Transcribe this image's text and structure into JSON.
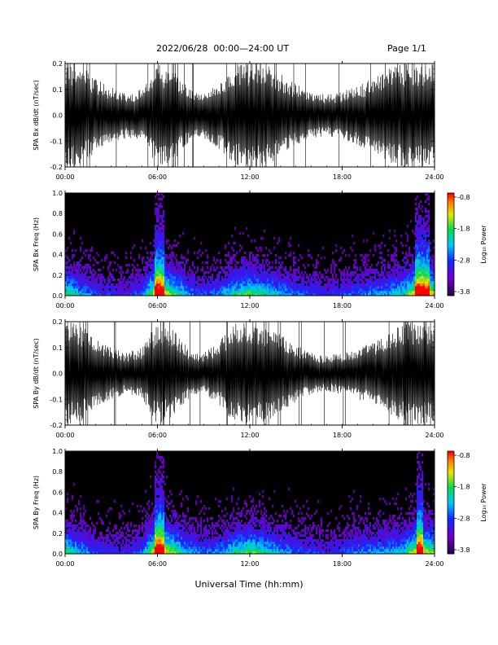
{
  "header": {
    "title": "2022/06/28  00:00—24:00 UT",
    "page": "Page 1/1"
  },
  "xlabel": "Universal Time (hh:mm)",
  "colors": {
    "trace": "#000000",
    "spectrogram_bg": "#000000"
  },
  "chart_data": [
    {
      "type": "line",
      "ylabel": "SPA Bx dB/dt (nT/sec)",
      "x_ticks": [
        "00:00",
        "06:00",
        "12:00",
        "18:00",
        "24:00"
      ],
      "y_ticks": [
        "0.2",
        "0.1",
        "0.0",
        "-0.1",
        "-0.2"
      ],
      "xlim": [
        0,
        24
      ],
      "ylim": [
        -0.2,
        0.2
      ],
      "envelope": {
        "hours": [
          0,
          1,
          2,
          3,
          4,
          5,
          6,
          7,
          8,
          9,
          10,
          11,
          12,
          13,
          14,
          15,
          16,
          17,
          18,
          19,
          20,
          21,
          22,
          23,
          24
        ],
        "amplitude": [
          0.2,
          0.2,
          0.14,
          0.11,
          0.09,
          0.1,
          0.2,
          0.18,
          0.11,
          0.09,
          0.13,
          0.2,
          0.2,
          0.2,
          0.16,
          0.12,
          0.09,
          0.08,
          0.09,
          0.12,
          0.14,
          0.18,
          0.2,
          0.2,
          0.2
        ]
      }
    },
    {
      "type": "heatmap",
      "ylabel": "SPA Bx Freq (Hz)",
      "x_ticks": [
        "00:00",
        "06:00",
        "12:00",
        "18:00",
        "24:00"
      ],
      "y_ticks": [
        "1.0",
        "0.8",
        "0.6",
        "0.4",
        "0.2",
        "0.0"
      ],
      "xlim": [
        0,
        24
      ],
      "ylim": [
        0,
        1.0
      ],
      "colorbar": {
        "label": "Log₁₀ Power",
        "ticks": [
          "-0.8",
          "-1.8",
          "-2.8",
          "-3.8"
        ],
        "range": [
          -3.8,
          -0.8
        ]
      },
      "activity": {
        "hours": [
          0,
          1,
          2,
          3,
          4,
          5,
          6,
          7,
          8,
          9,
          10,
          11,
          12,
          13,
          14,
          15,
          16,
          17,
          18,
          19,
          20,
          21,
          22,
          23,
          24
        ],
        "level": [
          0.7,
          0.5,
          0.35,
          0.3,
          0.3,
          0.4,
          0.95,
          0.7,
          0.45,
          0.35,
          0.45,
          0.6,
          0.7,
          0.6,
          0.5,
          0.4,
          0.35,
          0.3,
          0.35,
          0.4,
          0.45,
          0.5,
          0.6,
          0.95,
          0.8
        ]
      }
    },
    {
      "type": "line",
      "ylabel": "SPA By dB/dt (nT/sec)",
      "x_ticks": [
        "00:00",
        "06:00",
        "12:00",
        "18:00",
        "24:00"
      ],
      "y_ticks": [
        "0.2",
        "0.1",
        "0.0",
        "-0.1",
        "-0.2"
      ],
      "xlim": [
        0,
        24
      ],
      "ylim": [
        -0.2,
        0.2
      ],
      "envelope": {
        "hours": [
          0,
          1,
          2,
          3,
          4,
          5,
          6,
          7,
          8,
          9,
          10,
          11,
          12,
          13,
          14,
          15,
          16,
          17,
          18,
          19,
          20,
          21,
          22,
          23,
          24
        ],
        "amplitude": [
          0.2,
          0.19,
          0.13,
          0.1,
          0.08,
          0.1,
          0.2,
          0.17,
          0.1,
          0.08,
          0.12,
          0.2,
          0.2,
          0.19,
          0.15,
          0.11,
          0.08,
          0.07,
          0.08,
          0.1,
          0.12,
          0.15,
          0.2,
          0.2,
          0.2
        ]
      }
    },
    {
      "type": "heatmap",
      "ylabel": "SPA By Freq (Hz)",
      "x_ticks": [
        "00:00",
        "06:00",
        "12:00",
        "18:00",
        "24:00"
      ],
      "y_ticks": [
        "1.0",
        "0.8",
        "0.6",
        "0.4",
        "0.2",
        "0.0"
      ],
      "xlim": [
        0,
        24
      ],
      "ylim": [
        0,
        1.0
      ],
      "colorbar": {
        "label": "Log₁₀ Power",
        "ticks": [
          "-0.8",
          "-1.8",
          "-2.8",
          "-3.8"
        ],
        "range": [
          -3.8,
          -0.8
        ]
      },
      "activity": {
        "hours": [
          0,
          1,
          2,
          3,
          4,
          5,
          6,
          7,
          8,
          9,
          10,
          11,
          12,
          13,
          14,
          15,
          16,
          17,
          18,
          19,
          20,
          21,
          22,
          23,
          24
        ],
        "level": [
          0.7,
          0.5,
          0.35,
          0.3,
          0.3,
          0.4,
          0.95,
          0.75,
          0.5,
          0.4,
          0.45,
          0.6,
          0.7,
          0.6,
          0.5,
          0.4,
          0.35,
          0.3,
          0.35,
          0.45,
          0.45,
          0.5,
          0.55,
          0.9,
          0.7
        ]
      }
    }
  ]
}
